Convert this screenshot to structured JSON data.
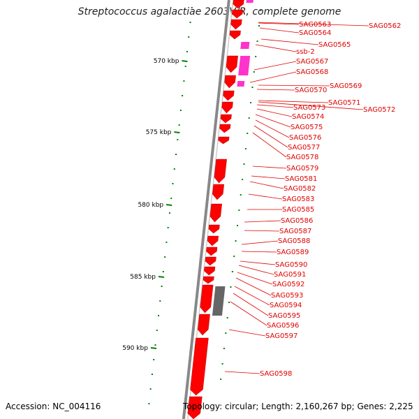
{
  "title": "Streptococcus agalactiae 2603V/R, complete genome",
  "footer": {
    "accession": "Accession: NC_004116",
    "summary": "Topology: circular; Length: 2,160,267 bp; Genes: 2,225"
  },
  "colors": {
    "cds": "#ff0000",
    "rna": "#ff33cc",
    "pseudo": "#666666",
    "backbone": "#888888",
    "ticks": "#008000",
    "labels": "#e00000"
  },
  "scale_labels": [
    "570 kbp",
    "575 kbp",
    "580 kbp",
    "585 kbp",
    "590 kbp"
  ],
  "gene_labels": [
    "SAG0562",
    "SAG0563",
    "SAG0564",
    "SAG0565",
    "ssb-2",
    "SAG0567",
    "SAG0568",
    "SAG0569",
    "SAG0570",
    "SAG0571",
    "SAG0572",
    "SAG0573",
    "SAG0574",
    "SAG0575",
    "SAG0576",
    "SAG0577",
    "SAG0578",
    "SAG0579",
    "SAG0581",
    "SAG0582",
    "SAG0583",
    "SAG0585",
    "SAG0586",
    "SAG0587",
    "SAG0588",
    "SAG0589",
    "SAG0590",
    "SAG0591",
    "SAG0592",
    "SAG0593",
    "SAG0594",
    "SAG0595",
    "SAG0596",
    "SAG0597",
    "SAG0598"
  ]
}
